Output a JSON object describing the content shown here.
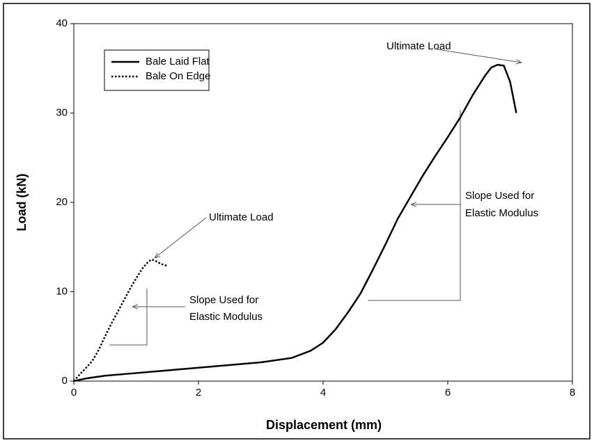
{
  "chart_data": {
    "type": "line",
    "xlabel": "Displacement (mm)",
    "ylabel": "Load (kN)",
    "xlim": [
      0,
      8
    ],
    "xticks": [
      0,
      2,
      4,
      6,
      8
    ],
    "ylim": [
      0,
      40
    ],
    "yticks": [
      0,
      10,
      20,
      30,
      40
    ],
    "grid": false,
    "legend": "upper left",
    "series": [
      {
        "name": "Bale Laid Flat",
        "color": "#000000",
        "style": "solid",
        "x": [
          0,
          0.2,
          0.5,
          1,
          1.5,
          2,
          2.5,
          3,
          3.5,
          3.8,
          4,
          4.2,
          4.4,
          4.6,
          4.8,
          5,
          5.2,
          5.4,
          5.6,
          5.8,
          6,
          6.2,
          6.4,
          6.6,
          6.7,
          6.8,
          6.9,
          7,
          7.1
        ],
        "values": [
          0,
          0.3,
          0.6,
          0.9,
          1.2,
          1.5,
          1.8,
          2.1,
          2.6,
          3.4,
          4.3,
          5.8,
          7.7,
          9.8,
          12.5,
          15.3,
          18.2,
          20.6,
          23,
          25.2,
          27.3,
          29.5,
          32,
          34.2,
          35.1,
          35.4,
          35.3,
          33.5,
          30
        ]
      },
      {
        "name": "Bale On Edge",
        "color": "#000000",
        "style": "dotted",
        "x": [
          0,
          0.1,
          0.2,
          0.3,
          0.4,
          0.5,
          0.6,
          0.7,
          0.8,
          0.9,
          1,
          1.1,
          1.2,
          1.25,
          1.3,
          1.4,
          1.5
        ],
        "values": [
          0,
          0.8,
          1.5,
          2.3,
          3.5,
          5,
          6.4,
          7.7,
          9,
          10.3,
          11.5,
          12.6,
          13.4,
          13.6,
          13.5,
          13.1,
          12.9
        ]
      }
    ],
    "annotations": [
      "Ultimate Load",
      "Slope Used for",
      "Elastic Modulus",
      "Ultimate Load",
      "Slope Used for",
      "Elastic Modulus"
    ]
  }
}
